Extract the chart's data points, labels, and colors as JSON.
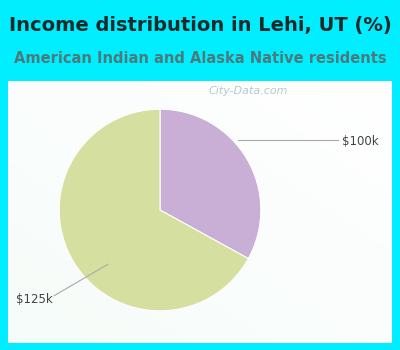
{
  "title": "Income distribution in Lehi, UT (%)",
  "subtitle": "American Indian and Alaska Native residents",
  "slices": [
    33,
    67
  ],
  "labels": [
    "$100k",
    "$125k"
  ],
  "colors": [
    "#c9aed6",
    "#d4dfa0"
  ],
  "bg_color_top": "#00eeff",
  "chart_bg_color": "#e8f8f2",
  "title_color": "#1a2a2a",
  "subtitle_color": "#4a7a7a",
  "title_fontsize": 14,
  "subtitle_fontsize": 10.5,
  "watermark": "City-Data.com",
  "startangle": 90
}
